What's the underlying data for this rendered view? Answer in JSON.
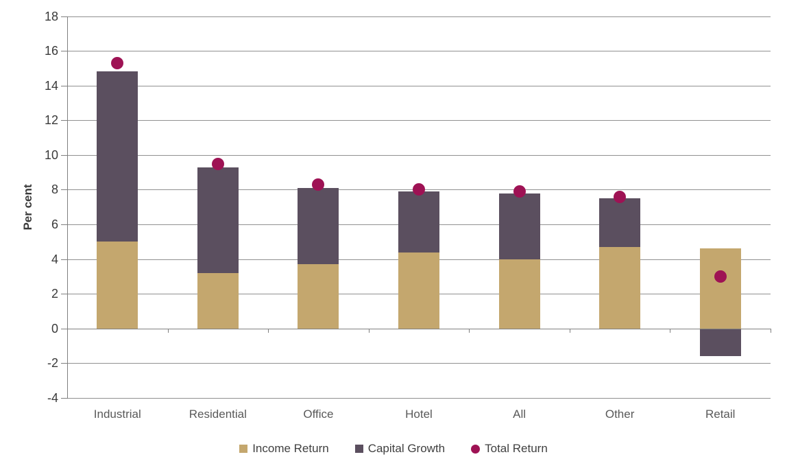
{
  "page": {
    "background": "#ffffff"
  },
  "y_axis_title": "Per cent",
  "chart_data": {
    "type": "bar",
    "subtype": "stacked-bars-with-point-markers",
    "title": "",
    "xlabel": "",
    "ylabel": "Per cent",
    "categories": [
      "Industrial",
      "Residential",
      "Office",
      "Hotel",
      "All",
      "Other",
      "Retail"
    ],
    "series": [
      {
        "name": "Income Return",
        "render": "bar",
        "color": "#c4a76e",
        "values": [
          5.0,
          3.2,
          3.7,
          4.4,
          4.0,
          4.7,
          4.6
        ]
      },
      {
        "name": "Capital Growth",
        "render": "bar",
        "color": "#5b4f5f",
        "values": [
          9.8,
          6.1,
          4.4,
          3.5,
          3.8,
          2.8,
          -1.6
        ]
      },
      {
        "name": "Total Return",
        "render": "point",
        "color": "#9e1254",
        "values": [
          15.3,
          9.5,
          8.3,
          8.0,
          7.9,
          7.6,
          3.0
        ]
      }
    ],
    "ylim": [
      -4,
      18
    ],
    "ytick_step": 2,
    "ytick_labels": [
      "18",
      "16",
      "14",
      "12",
      "10",
      "8",
      "6",
      "4",
      "2",
      "0",
      "-2",
      "-4"
    ],
    "grid": true,
    "legend_position": "bottom",
    "style": {
      "gridline_color": "#909090",
      "axis_color": "#7f7f7f",
      "ytick_label_color": "#3a3a3a",
      "category_label_color": "#595959",
      "legend_label_color": "#404040"
    }
  }
}
